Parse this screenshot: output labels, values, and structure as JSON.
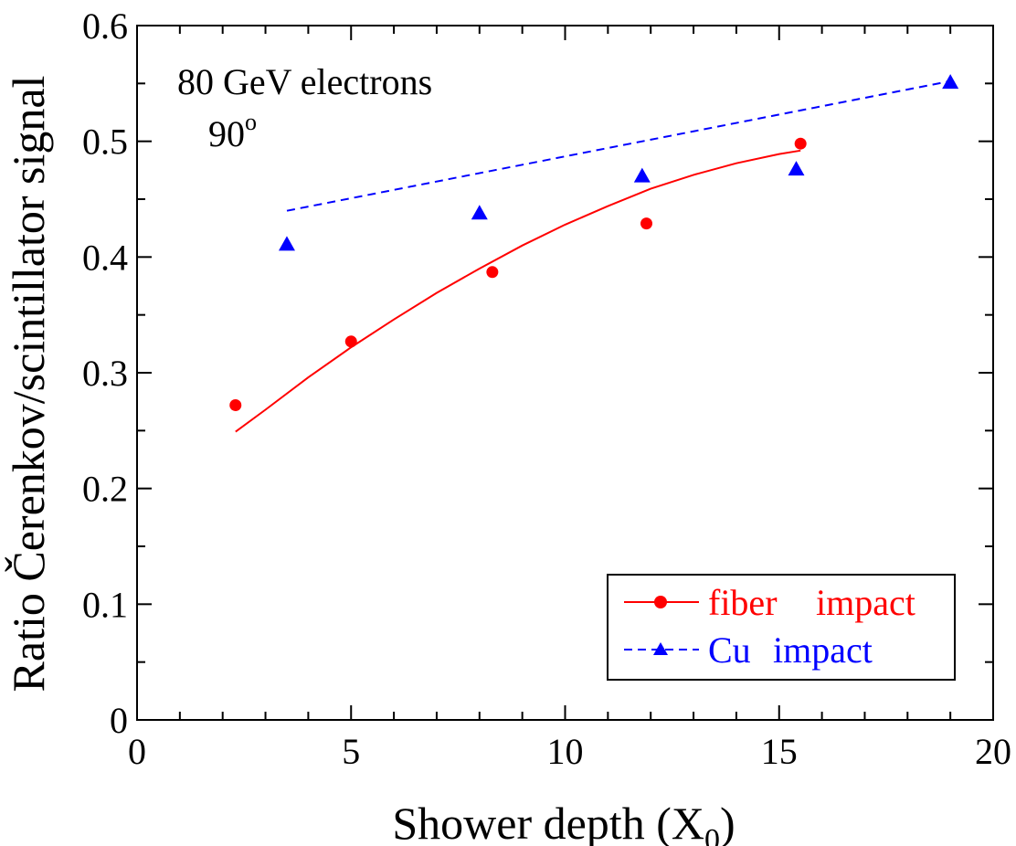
{
  "chart_data": {
    "type": "scatter",
    "xlabel": "Shower depth (X",
    "xlabel_sub": "0",
    "xlabel_close": ")",
    "ylabel": "Ratio Čerenkov/scintillator signal",
    "xlim": [
      0,
      20
    ],
    "ylim": [
      0,
      0.6
    ],
    "x_ticks": [
      0,
      5,
      10,
      15,
      20
    ],
    "x_tick_labels": [
      "0",
      "5",
      "10",
      "15",
      "20"
    ],
    "y_ticks": [
      0,
      0.1,
      0.2,
      0.3,
      0.4,
      0.5,
      0.6
    ],
    "y_tick_labels": [
      "0",
      "0.1",
      "0.2",
      "0.3",
      "0.4",
      "0.5",
      "0.6"
    ],
    "grid": false,
    "legend_position": "bottom-right",
    "annotation": {
      "line1": "80 GeV electrons",
      "line2": "90",
      "line2_sup": "o"
    },
    "series": [
      {
        "name_part1": "fiber",
        "name_part2": "impact",
        "color": "#ff0000",
        "marker": "circle",
        "line_style": "solid",
        "x": [
          2.3,
          5.0,
          8.3,
          11.9,
          15.5
        ],
        "y": [
          0.272,
          0.327,
          0.387,
          0.429,
          0.498
        ],
        "fit_x": [
          2.3,
          3.0,
          4.0,
          5.0,
          6.0,
          7.0,
          8.0,
          9.0,
          10.0,
          11.0,
          12.0,
          13.0,
          14.0,
          15.0,
          15.5
        ],
        "fit_y": [
          0.249,
          0.268,
          0.296,
          0.322,
          0.346,
          0.369,
          0.39,
          0.41,
          0.428,
          0.444,
          0.459,
          0.471,
          0.481,
          0.489,
          0.492
        ]
      },
      {
        "name_part1": "Cu",
        "name_part2": "impact",
        "color": "#0000ff",
        "marker": "triangle",
        "line_style": "dashed",
        "x": [
          3.5,
          8.0,
          11.8,
          15.4,
          19.0
        ],
        "y": [
          0.411,
          0.438,
          0.47,
          0.476,
          0.551
        ],
        "fit_x": [
          3.5,
          19.0
        ],
        "fit_y": [
          0.44,
          0.552
        ]
      }
    ]
  }
}
